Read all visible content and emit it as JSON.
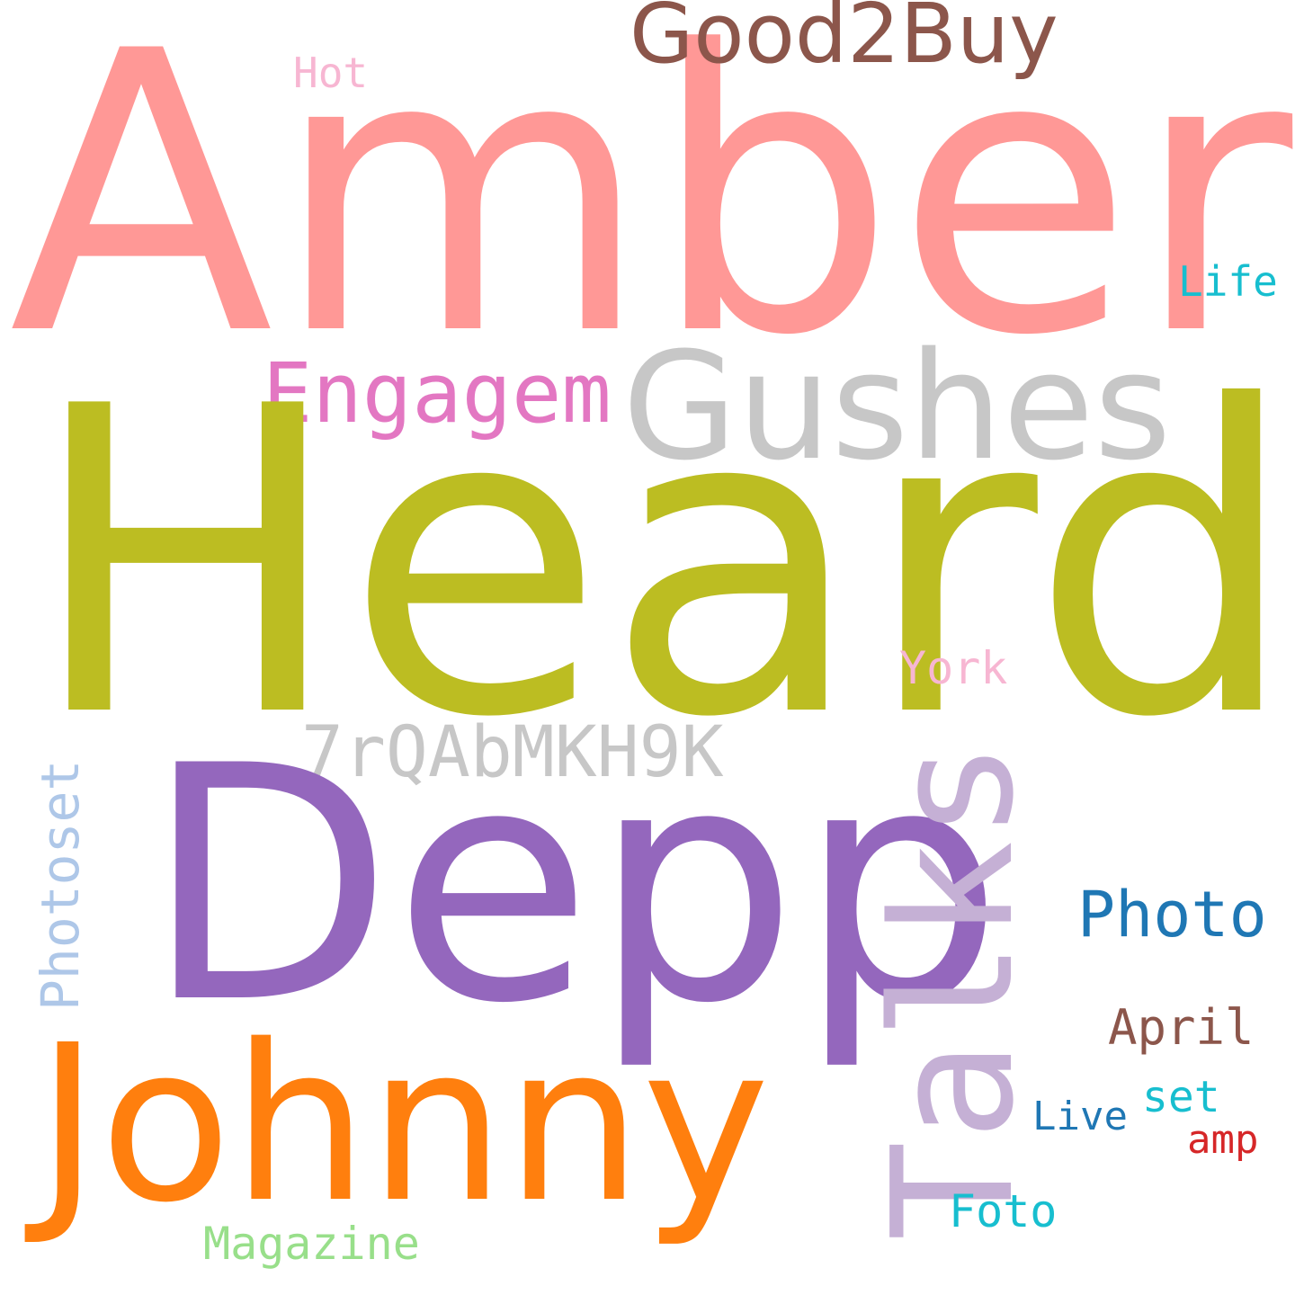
{
  "words": {
    "amber": {
      "text": "Amber",
      "color": "#ff9896"
    },
    "heard": {
      "text": "Heard",
      "color": "#bcbd22"
    },
    "depp": {
      "text": "Depp",
      "color": "#9467bd"
    },
    "johnny": {
      "text": "Johnny",
      "color": "#ff7f0e"
    },
    "gushes": {
      "text": "Gushes",
      "color": "#c7c7c7"
    },
    "talks": {
      "text": "Talks",
      "color": "#c5b0d5"
    },
    "good2buy": {
      "text": "Good2Buy",
      "color": "#8c564b"
    },
    "engagem": {
      "text": "Engagem",
      "color": "#e377c2"
    },
    "code": {
      "text": "7rQAbMKH9K",
      "color": "#c7c7c7"
    },
    "photo": {
      "text": "Photo",
      "color": "#1f77b4"
    },
    "photoset": {
      "text": "Photoset",
      "color": "#aec7e8"
    },
    "april": {
      "text": "April",
      "color": "#8c564b"
    },
    "york": {
      "text": "York",
      "color": "#f7b6d2"
    },
    "magazine": {
      "text": "Magazine",
      "color": "#98df8a"
    },
    "foto": {
      "text": "Foto",
      "color": "#17becf"
    },
    "set": {
      "text": "set",
      "color": "#17becf"
    },
    "life": {
      "text": "Life",
      "color": "#17becf"
    },
    "hot": {
      "text": "Hot",
      "color": "#f7b6d2"
    },
    "live": {
      "text": "Live",
      "color": "#1f77b4"
    },
    "amp": {
      "text": "amp",
      "color": "#d62728"
    }
  }
}
